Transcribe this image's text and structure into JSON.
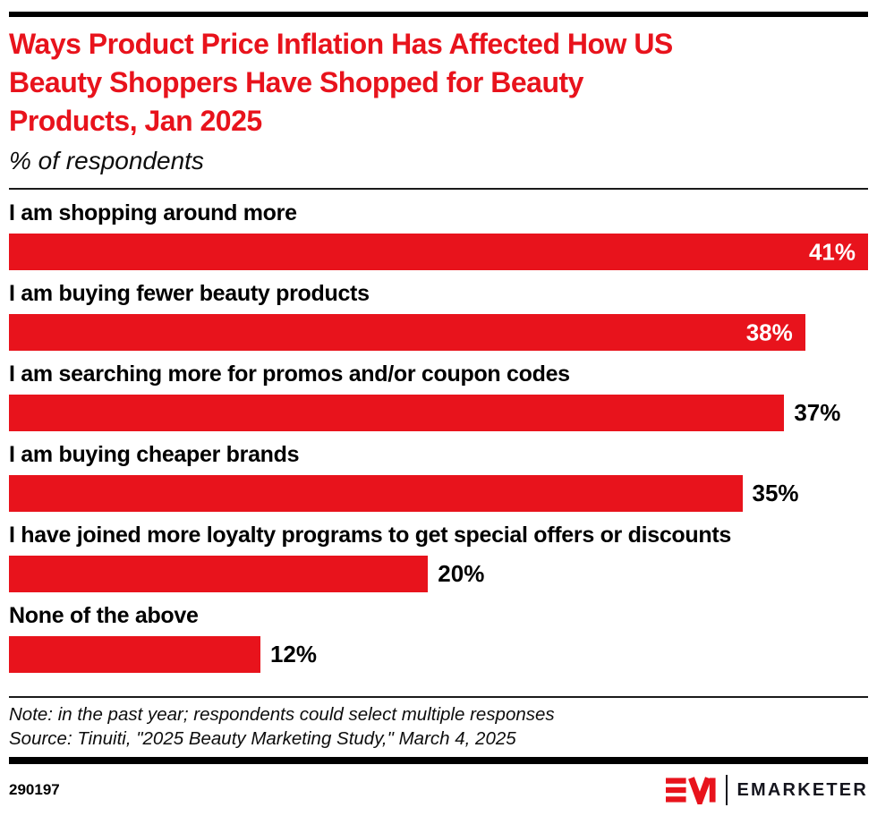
{
  "header": {
    "title_lines": [
      "Ways Product Price Inflation Has Affected How US",
      "Beauty Shoppers Have Shopped for Beauty",
      "Products, Jan 2025"
    ],
    "subtitle": "% of respondents"
  },
  "chart_data": {
    "type": "bar",
    "orientation": "horizontal",
    "title": "Ways Product Price Inflation Has Affected How US Beauty Shoppers Have Shopped for Beauty Products, Jan 2025",
    "subtitle": "% of respondents",
    "unit": "%",
    "categories": [
      "I am shopping around more",
      "I am buying fewer beauty products",
      "I am searching more for promos and/or coupon codes",
      "I am buying cheaper brands",
      "I have joined more loyalty programs to get special offers or discounts",
      "None of the above"
    ],
    "values": [
      41,
      38,
      37,
      35,
      20,
      12
    ],
    "value_labels": [
      "41%",
      "38%",
      "37%",
      "35%",
      "20%",
      "12%"
    ],
    "axis_max": 41,
    "bar_color": "#e8131c",
    "labels_inside": [
      true,
      true,
      false,
      false,
      false,
      false
    ],
    "xlabel": "",
    "ylabel": "",
    "grid": false,
    "legend": false
  },
  "footer": {
    "note": "Note: in the past year; respondents could select multiple responses",
    "source": "Source: Tinuiti, \"2025 Beauty Marketing Study,\" March 4, 2025",
    "chart_id": "290197",
    "brand_name": "EMARKETER",
    "brand_red": "#e8131c",
    "brand_ink": "#15151e"
  }
}
